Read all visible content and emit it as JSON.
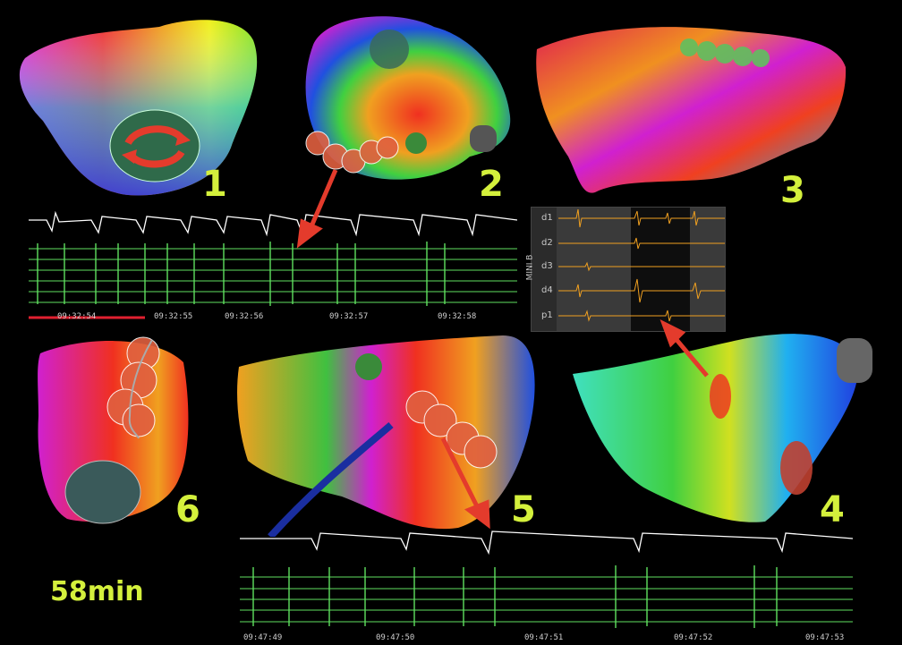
{
  "panels": [
    {
      "label": "1"
    },
    {
      "label": "2"
    },
    {
      "label": "3"
    },
    {
      "label": "4"
    },
    {
      "label": "5"
    },
    {
      "label": "6"
    }
  ],
  "duration_label": "58min",
  "ecg_top": {
    "timestamps": [
      "09:32:54",
      "09:32:55",
      "09:32:56",
      "09:32:57",
      "09:32:58"
    ]
  },
  "ecg_bottom": {
    "timestamps": [
      "09:47:49",
      "09:47:50",
      "09:47:51",
      "09:47:52",
      "09:47:53"
    ]
  },
  "mini_panel": {
    "title": "MINI B",
    "channels": [
      "d1",
      "d2",
      "d3",
      "d4",
      "p1"
    ]
  },
  "colors": {
    "label": "#d4f03c",
    "egm_green": "#5fe05f",
    "egm_orange": "#f0a020",
    "arrow_red": "#e43b2c",
    "catheter_blue": "#1a2ea0"
  }
}
